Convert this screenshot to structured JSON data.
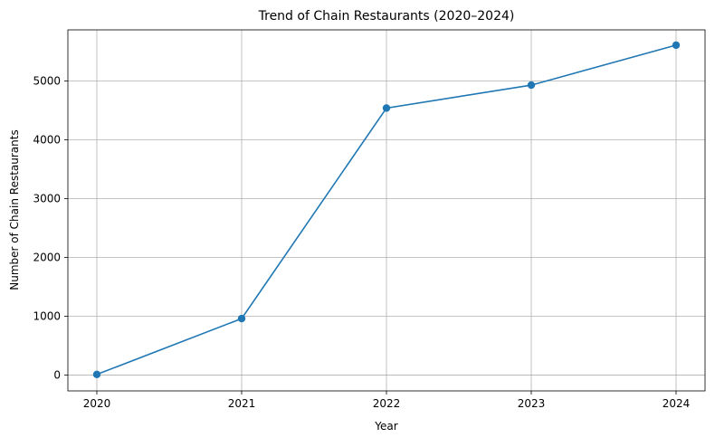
{
  "chart_data": {
    "type": "line",
    "title": "Trend of Chain Restaurants (2020–2024)",
    "xlabel": "Year",
    "ylabel": "Number of Chain Restaurants",
    "x": [
      "2020",
      "2021",
      "2022",
      "2023",
      "2024"
    ],
    "series": [
      {
        "values": [
          10,
          960,
          4540,
          4930,
          5610
        ],
        "color": "#1f77b4",
        "marker": "circle"
      }
    ],
    "xlim": [
      2019.8,
      2024.2
    ],
    "ylim": [
      -270,
      5870
    ],
    "yticks": [
      0,
      1000,
      2000,
      3000,
      4000,
      5000
    ],
    "grid": true,
    "legend": "none"
  }
}
